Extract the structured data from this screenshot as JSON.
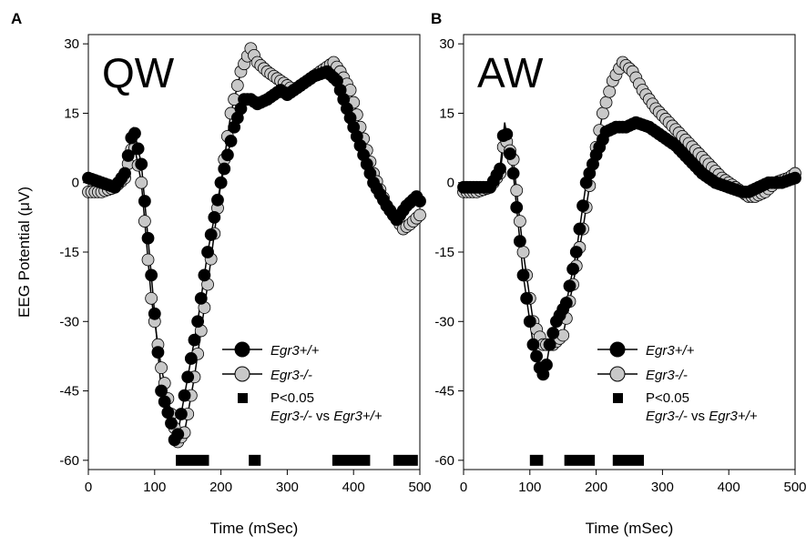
{
  "figure": {
    "ylabel": "EEG Potential (μV)",
    "xlabel": "Time (mSec)",
    "legend": {
      "wt_label": "Egr3+/+",
      "ko_label": "Egr3-/-",
      "sig_label": "P<0.05",
      "sig_sublabel_a": "Egr3-/-",
      "sig_sublabel_mid": " vs ",
      "sig_sublabel_b": "Egr3+/+"
    },
    "colors": {
      "wt": "#000000",
      "ko": "#c8c8c8",
      "sig": "#000000"
    }
  },
  "chart_data": [
    {
      "type": "line",
      "panel": "A",
      "title": "QW",
      "xlim": [
        0,
        500
      ],
      "ylim": [
        -62,
        32
      ],
      "xticks": [
        0,
        100,
        200,
        300,
        400,
        500
      ],
      "yticks": [
        30,
        15,
        0,
        -15,
        -30,
        -45,
        -60
      ],
      "series": [
        {
          "name": "Egr3+/+",
          "color": "#000000",
          "x": [
            0,
            20,
            40,
            55,
            68,
            80,
            95,
            110,
            125,
            132,
            140,
            150,
            165,
            180,
            200,
            220,
            235,
            245,
            255,
            270,
            290,
            300,
            320,
            340,
            360,
            375,
            390,
            410,
            430,
            450,
            465,
            480,
            495,
            500
          ],
          "y": [
            1,
            0,
            -1,
            2,
            12,
            4,
            -20,
            -45,
            -52,
            -57,
            -50,
            -42,
            -30,
            -15,
            0,
            12,
            18,
            18,
            17,
            18,
            20,
            19,
            21,
            23,
            24,
            22,
            16,
            8,
            0,
            -5,
            -8,
            -5,
            -3,
            -4
          ]
        },
        {
          "name": "Egr3-/-",
          "color": "#c8c8c8",
          "x": [
            0,
            20,
            40,
            55,
            68,
            80,
            95,
            110,
            125,
            135,
            145,
            160,
            180,
            200,
            215,
            230,
            245,
            255,
            270,
            290,
            310,
            330,
            350,
            370,
            380,
            395,
            410,
            430,
            450,
            465,
            475,
            485,
            500
          ],
          "y": [
            -2,
            -2,
            -1,
            1,
            9,
            0,
            -25,
            -40,
            -50,
            -56,
            -54,
            -42,
            -22,
            0,
            15,
            24,
            29,
            26,
            24,
            22,
            20,
            22,
            24,
            26,
            24,
            20,
            12,
            2,
            -5,
            -8,
            -10,
            -9,
            -7
          ]
        }
      ],
      "significance": {
        "name": "P<0.05",
        "intervals": [
          [
            132,
            182
          ],
          [
            242,
            260
          ],
          [
            368,
            425
          ],
          [
            460,
            497
          ]
        ]
      }
    },
    {
      "type": "line",
      "panel": "B",
      "title": "AW",
      "xlim": [
        0,
        500
      ],
      "ylim": [
        -62,
        32
      ],
      "xticks": [
        0,
        100,
        200,
        300,
        400,
        500
      ],
      "yticks": [
        30,
        15,
        0,
        -15,
        -30,
        -45,
        -60
      ],
      "series": [
        {
          "name": "Egr3+/+",
          "color": "#000000",
          "x": [
            0,
            20,
            40,
            55,
            62,
            75,
            90,
            105,
            115,
            122,
            130,
            140,
            155,
            170,
            185,
            200,
            215,
            230,
            245,
            260,
            280,
            300,
            320,
            340,
            360,
            380,
            400,
            420,
            430,
            445,
            460,
            480,
            500
          ],
          "y": [
            -1,
            -1,
            -1,
            3,
            13,
            2,
            -20,
            -35,
            -40,
            -42,
            -35,
            -30,
            -26,
            -15,
            0,
            6,
            11,
            12,
            12,
            13,
            12,
            10,
            8,
            5,
            2,
            0,
            -1,
            -2,
            -2,
            -1,
            0,
            0,
            1
          ]
        },
        {
          "name": "Egr3-/-",
          "color": "#c8c8c8",
          "x": [
            0,
            20,
            40,
            55,
            62,
            75,
            90,
            105,
            120,
            135,
            150,
            165,
            180,
            195,
            210,
            225,
            240,
            255,
            270,
            290,
            310,
            330,
            350,
            370,
            390,
            410,
            430,
            440,
            455,
            470,
            490,
            500
          ],
          "y": [
            -2,
            -2,
            -1,
            2,
            10,
            5,
            -15,
            -30,
            -35,
            -35,
            -33,
            -22,
            -10,
            4,
            15,
            22,
            26,
            24,
            20,
            16,
            13,
            10,
            7,
            4,
            1,
            -1,
            -3,
            -3,
            -2,
            0,
            1,
            2
          ]
        }
      ],
      "significance": {
        "name": "P<0.05",
        "intervals": [
          [
            100,
            120
          ],
          [
            152,
            198
          ],
          [
            225,
            272
          ]
        ]
      }
    }
  ]
}
